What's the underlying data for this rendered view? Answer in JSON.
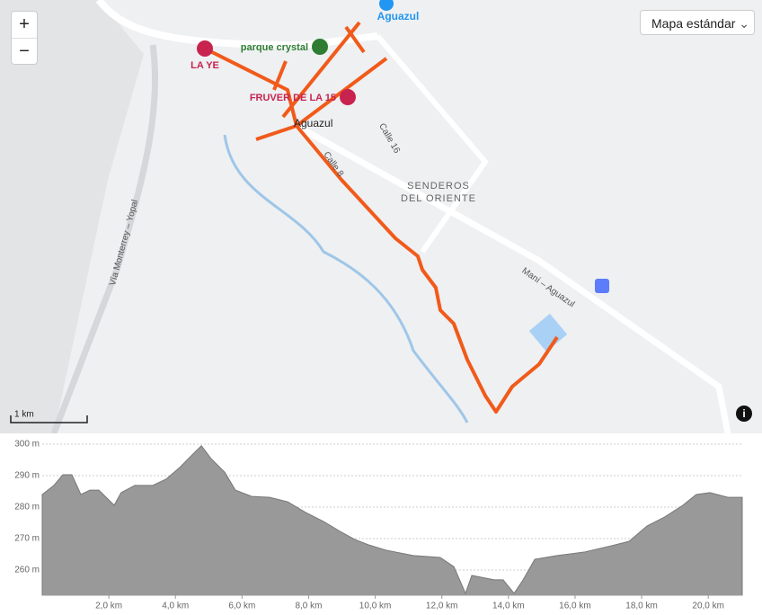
{
  "map": {
    "layer_button": "Mapa estándar",
    "zoom_in": "+",
    "zoom_out": "−",
    "scale": "1 km",
    "places": [
      "Aguazul",
      "LA YE",
      "parque crystal",
      "FRUVER DE LA 15",
      "Aguazul",
      "SENDEROS",
      "DEL ORIENTE"
    ],
    "roads": [
      "Calle 16",
      "Calle 8",
      "Vía Monterrey – Yopal",
      "Maní – Aguazul"
    ]
  },
  "chart_data": {
    "type": "area",
    "color": "#999999",
    "x": [
      0.0,
      0.35,
      0.62,
      0.89,
      1.16,
      1.43,
      1.7,
      2.16,
      2.37,
      2.78,
      3.32,
      3.72,
      4.13,
      4.53,
      4.78,
      5.07,
      5.48,
      5.8,
      6.29,
      6.83,
      7.37,
      7.91,
      8.45,
      8.99,
      9.39,
      9.8,
      10.33,
      11.14,
      11.95,
      12.36,
      12.71,
      12.9,
      13.57,
      13.84,
      14.17,
      14.44,
      14.79,
      15.46,
      16.27,
      17.08,
      17.62,
      18.16,
      18.7,
      19.24,
      19.64,
      20.05,
      20.59,
      21.02
    ],
    "values": [
      284.0,
      286.9,
      290.3,
      290.3,
      284.0,
      285.4,
      285.4,
      280.6,
      284.6,
      286.9,
      286.9,
      288.9,
      292.6,
      296.9,
      299.5,
      295.4,
      291.1,
      285.4,
      283.4,
      283.1,
      281.7,
      278.3,
      275.4,
      272.0,
      269.7,
      268.0,
      266.3,
      264.6,
      264.0,
      261.1,
      252.6,
      258.3,
      256.9,
      256.9,
      252.6,
      256.9,
      263.4,
      264.6,
      265.7,
      267.7,
      269.1,
      274.0,
      276.9,
      280.6,
      284.0,
      284.6,
      283.1,
      283.1
    ],
    "xlim": [
      0,
      21.02
    ],
    "ylim": [
      252,
      302
    ],
    "xticks": [
      {
        "value": 2,
        "label": "2,0 km"
      },
      {
        "value": 4,
        "label": "4,0 km"
      },
      {
        "value": 6,
        "label": "6,0 km"
      },
      {
        "value": 8,
        "label": "8,0 km"
      },
      {
        "value": 10,
        "label": "10,0 km"
      },
      {
        "value": 12,
        "label": "12,0 km"
      },
      {
        "value": 14,
        "label": "14,0 km"
      },
      {
        "value": 16,
        "label": "16,0 km"
      },
      {
        "value": 18,
        "label": "18,0 km"
      },
      {
        "value": 20,
        "label": "20,0 km"
      }
    ],
    "yticks": [
      {
        "value": 260,
        "label": "260 m"
      },
      {
        "value": 270,
        "label": "270 m"
      },
      {
        "value": 280,
        "label": "280 m"
      },
      {
        "value": 290,
        "label": "290 m"
      },
      {
        "value": 300,
        "label": "300 m"
      }
    ],
    "grid": true
  }
}
